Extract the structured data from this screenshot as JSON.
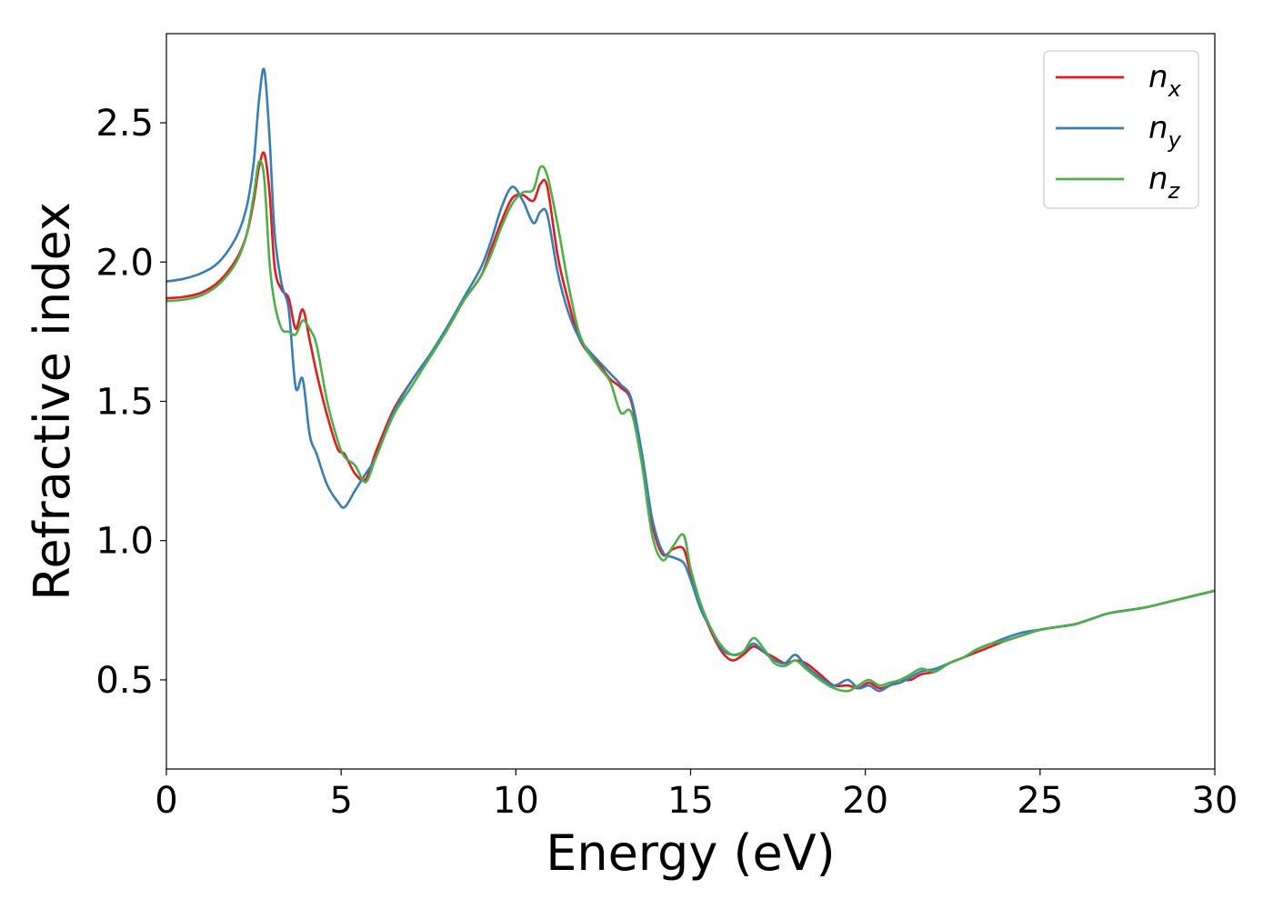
{
  "chart_data": {
    "type": "line",
    "title": "",
    "xlabel": "Energy (eV)",
    "ylabel": "Refractive index",
    "xlim": [
      0,
      30
    ],
    "ylim": [
      0.18,
      2.82
    ],
    "xticks": [
      0,
      5,
      10,
      15,
      20,
      25,
      30
    ],
    "xtick_labels": [
      "0",
      "5",
      "10",
      "15",
      "20",
      "25",
      "30"
    ],
    "yticks": [
      0.5,
      1.0,
      1.5,
      2.0,
      2.5
    ],
    "ytick_labels": [
      "0.5",
      "1.0",
      "1.5",
      "2.0",
      "2.5"
    ],
    "grid": false,
    "legend_position": "top-right",
    "series": [
      {
        "name": "n_x",
        "label_base": "n",
        "label_sub": "x",
        "color": "#e41a1c",
        "x": [
          0,
          0.5,
          1.0,
          1.5,
          2.0,
          2.3,
          2.5,
          2.65,
          2.8,
          2.95,
          3.1,
          3.3,
          3.5,
          3.7,
          3.9,
          4.1,
          4.3,
          4.6,
          4.9,
          5.1,
          5.4,
          5.7,
          6.0,
          6.5,
          7.0,
          7.5,
          8.0,
          8.5,
          9.0,
          9.3,
          9.6,
          9.9,
          10.2,
          10.5,
          10.7,
          10.9,
          11.2,
          11.5,
          11.8,
          12.1,
          12.4,
          12.7,
          13.0,
          13.3,
          13.6,
          13.9,
          14.2,
          14.5,
          14.8,
          15.0,
          15.3,
          15.6,
          15.9,
          16.2,
          16.5,
          16.8,
          17.1,
          17.4,
          17.7,
          18.0,
          18.3,
          18.7,
          19.1,
          19.5,
          19.8,
          20.1,
          20.4,
          20.7,
          21.0,
          21.3,
          21.6,
          22.0,
          22.4,
          22.8,
          23.2,
          23.6,
          24.0,
          24.5,
          25.0,
          25.5,
          26.0,
          26.5,
          27.0,
          28.0,
          29.0,
          30.0
        ],
        "y": [
          1.87,
          1.875,
          1.89,
          1.93,
          2.01,
          2.1,
          2.22,
          2.34,
          2.39,
          2.25,
          1.98,
          1.9,
          1.87,
          1.76,
          1.83,
          1.72,
          1.6,
          1.45,
          1.33,
          1.31,
          1.24,
          1.22,
          1.32,
          1.47,
          1.57,
          1.66,
          1.75,
          1.86,
          1.95,
          2.05,
          2.15,
          2.23,
          2.24,
          2.22,
          2.28,
          2.27,
          2.02,
          1.86,
          1.73,
          1.67,
          1.63,
          1.58,
          1.55,
          1.5,
          1.3,
          1.06,
          0.95,
          0.97,
          0.97,
          0.88,
          0.76,
          0.67,
          0.6,
          0.57,
          0.59,
          0.62,
          0.6,
          0.58,
          0.56,
          0.57,
          0.56,
          0.52,
          0.48,
          0.48,
          0.47,
          0.49,
          0.47,
          0.48,
          0.5,
          0.5,
          0.52,
          0.53,
          0.56,
          0.58,
          0.6,
          0.62,
          0.64,
          0.66,
          0.68,
          0.69,
          0.7,
          0.72,
          0.74,
          0.76,
          0.79,
          0.82
        ]
      },
      {
        "name": "n_y",
        "label_base": "n",
        "label_sub": "y",
        "color": "#377eb8",
        "x": [
          0,
          0.5,
          1.0,
          1.5,
          2.0,
          2.3,
          2.5,
          2.65,
          2.8,
          2.95,
          3.1,
          3.3,
          3.5,
          3.7,
          3.9,
          4.1,
          4.3,
          4.6,
          4.9,
          5.1,
          5.4,
          5.7,
          6.0,
          6.5,
          7.0,
          7.5,
          8.0,
          8.5,
          9.0,
          9.3,
          9.6,
          9.9,
          10.2,
          10.5,
          10.7,
          10.9,
          11.2,
          11.5,
          11.8,
          12.1,
          12.4,
          12.7,
          13.0,
          13.3,
          13.6,
          13.9,
          14.2,
          14.5,
          14.8,
          15.0,
          15.3,
          15.6,
          15.9,
          16.2,
          16.5,
          16.8,
          17.1,
          17.4,
          17.7,
          18.0,
          18.3,
          18.7,
          19.1,
          19.5,
          19.8,
          20.1,
          20.4,
          20.7,
          21.0,
          21.3,
          21.6,
          22.0,
          22.4,
          22.8,
          23.2,
          23.6,
          24.0,
          24.5,
          25.0,
          25.5,
          26.0,
          26.5,
          27.0,
          28.0,
          29.0,
          30.0
        ],
        "y": [
          1.93,
          1.94,
          1.96,
          2.0,
          2.09,
          2.2,
          2.36,
          2.58,
          2.69,
          2.45,
          2.1,
          1.92,
          1.83,
          1.55,
          1.58,
          1.38,
          1.31,
          1.2,
          1.14,
          1.12,
          1.18,
          1.24,
          1.3,
          1.46,
          1.57,
          1.66,
          1.76,
          1.87,
          1.98,
          2.08,
          2.2,
          2.27,
          2.22,
          2.14,
          2.18,
          2.17,
          1.96,
          1.82,
          1.73,
          1.68,
          1.64,
          1.6,
          1.56,
          1.51,
          1.32,
          1.08,
          0.96,
          0.94,
          0.92,
          0.86,
          0.75,
          0.68,
          0.61,
          0.59,
          0.6,
          0.63,
          0.6,
          0.57,
          0.56,
          0.59,
          0.55,
          0.51,
          0.48,
          0.5,
          0.47,
          0.48,
          0.46,
          0.48,
          0.49,
          0.51,
          0.53,
          0.54,
          0.56,
          0.58,
          0.61,
          0.63,
          0.65,
          0.67,
          0.68,
          0.69,
          0.7,
          0.72,
          0.74,
          0.76,
          0.79,
          0.82
        ]
      },
      {
        "name": "n_z",
        "label_base": "n",
        "label_sub": "z",
        "color": "#4daf4a",
        "x": [
          0,
          0.5,
          1.0,
          1.5,
          2.0,
          2.3,
          2.5,
          2.65,
          2.8,
          2.95,
          3.1,
          3.3,
          3.5,
          3.7,
          3.9,
          4.1,
          4.3,
          4.6,
          4.9,
          5.1,
          5.4,
          5.7,
          6.0,
          6.5,
          7.0,
          7.5,
          8.0,
          8.5,
          9.0,
          9.3,
          9.6,
          9.9,
          10.2,
          10.5,
          10.7,
          10.9,
          11.2,
          11.5,
          11.8,
          12.1,
          12.4,
          12.7,
          13.0,
          13.3,
          13.6,
          13.9,
          14.2,
          14.5,
          14.8,
          15.0,
          15.3,
          15.6,
          15.9,
          16.2,
          16.5,
          16.8,
          17.1,
          17.4,
          17.7,
          18.0,
          18.3,
          18.7,
          19.1,
          19.5,
          19.8,
          20.1,
          20.4,
          20.7,
          21.0,
          21.3,
          21.6,
          22.0,
          22.4,
          22.8,
          23.2,
          23.6,
          24.0,
          24.5,
          25.0,
          25.5,
          26.0,
          26.5,
          27.0,
          28.0,
          29.0,
          30.0
        ],
        "y": [
          1.86,
          1.865,
          1.88,
          1.92,
          2.0,
          2.1,
          2.24,
          2.36,
          2.3,
          2.0,
          1.85,
          1.76,
          1.75,
          1.74,
          1.79,
          1.76,
          1.7,
          1.5,
          1.36,
          1.3,
          1.27,
          1.21,
          1.3,
          1.45,
          1.55,
          1.65,
          1.75,
          1.86,
          1.95,
          2.03,
          2.13,
          2.21,
          2.25,
          2.26,
          2.34,
          2.31,
          2.13,
          1.92,
          1.75,
          1.67,
          1.62,
          1.57,
          1.46,
          1.46,
          1.28,
          1.02,
          0.93,
          0.98,
          1.02,
          0.9,
          0.77,
          0.68,
          0.62,
          0.59,
          0.6,
          0.65,
          0.61,
          0.56,
          0.55,
          0.57,
          0.54,
          0.5,
          0.47,
          0.46,
          0.48,
          0.5,
          0.48,
          0.49,
          0.5,
          0.52,
          0.54,
          0.53,
          0.56,
          0.58,
          0.61,
          0.63,
          0.64,
          0.66,
          0.68,
          0.69,
          0.7,
          0.72,
          0.74,
          0.76,
          0.79,
          0.82
        ]
      }
    ]
  }
}
